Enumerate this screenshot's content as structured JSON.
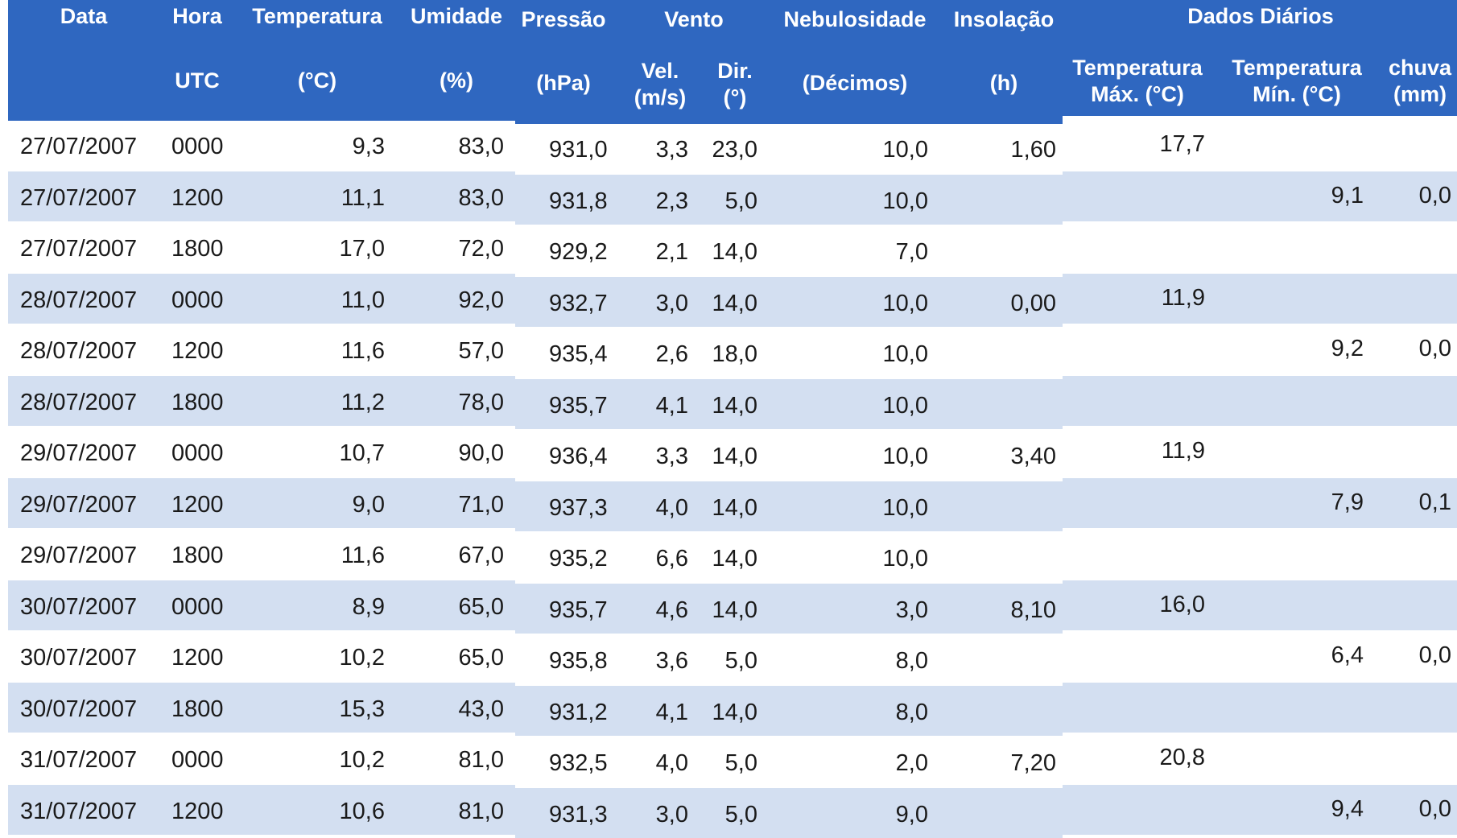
{
  "table": {
    "headers": {
      "data": "Data",
      "hora": "Hora",
      "hora_unit": "UTC",
      "temperatura": "Temperatura",
      "temperatura_unit": "(°C)",
      "umidade": "Umidade",
      "umidade_unit": "(%)",
      "pressao": "Pressão",
      "pressao_unit": "(hPa)",
      "vento": "Vento",
      "vento_vel_1": "Vel.",
      "vento_vel_2": "(m/s)",
      "vento_dir_1": "Dir.",
      "vento_dir_2": "(°)",
      "nebulosidade": "Nebulosidade",
      "nebulosidade_unit": "(Décimos)",
      "insolacao": "Insolação",
      "insolacao_unit": "(h)",
      "dados_diarios": "Dados Diários",
      "tmax_1": "Temperatura",
      "tmax_2": "Máx. (°C)",
      "tmin_1": "Temperatura",
      "tmin_2": "Mín. (°C)",
      "chuva_1": "chuva",
      "chuva_2": "(mm)"
    },
    "rows": [
      {
        "data": "27/07/2007",
        "hora": "0000",
        "temp": "9,3",
        "umid": "83,0",
        "pres": "931,0",
        "vel": "3,3",
        "dir": "23,0",
        "neb": "10,0",
        "ins": "1,60",
        "tmax": "17,7",
        "tmin": "",
        "chuva": ""
      },
      {
        "data": "27/07/2007",
        "hora": "1200",
        "temp": "11,1",
        "umid": "83,0",
        "pres": "931,8",
        "vel": "2,3",
        "dir": "5,0",
        "neb": "10,0",
        "ins": "",
        "tmax": "",
        "tmin": "9,1",
        "chuva": "0,0"
      },
      {
        "data": "27/07/2007",
        "hora": "1800",
        "temp": "17,0",
        "umid": "72,0",
        "pres": "929,2",
        "vel": "2,1",
        "dir": "14,0",
        "neb": "7,0",
        "ins": "",
        "tmax": "",
        "tmin": "",
        "chuva": ""
      },
      {
        "data": "28/07/2007",
        "hora": "0000",
        "temp": "11,0",
        "umid": "92,0",
        "pres": "932,7",
        "vel": "3,0",
        "dir": "14,0",
        "neb": "10,0",
        "ins": "0,00",
        "tmax": "11,9",
        "tmin": "",
        "chuva": ""
      },
      {
        "data": "28/07/2007",
        "hora": "1200",
        "temp": "11,6",
        "umid": "57,0",
        "pres": "935,4",
        "vel": "2,6",
        "dir": "18,0",
        "neb": "10,0",
        "ins": "",
        "tmax": "",
        "tmin": "9,2",
        "chuva": "0,0"
      },
      {
        "data": "28/07/2007",
        "hora": "1800",
        "temp": "11,2",
        "umid": "78,0",
        "pres": "935,7",
        "vel": "4,1",
        "dir": "14,0",
        "neb": "10,0",
        "ins": "",
        "tmax": "",
        "tmin": "",
        "chuva": ""
      },
      {
        "data": "29/07/2007",
        "hora": "0000",
        "temp": "10,7",
        "umid": "90,0",
        "pres": "936,4",
        "vel": "3,3",
        "dir": "14,0",
        "neb": "10,0",
        "ins": "3,40",
        "tmax": "11,9",
        "tmin": "",
        "chuva": ""
      },
      {
        "data": "29/07/2007",
        "hora": "1200",
        "temp": "9,0",
        "umid": "71,0",
        "pres": "937,3",
        "vel": "4,0",
        "dir": "14,0",
        "neb": "10,0",
        "ins": "",
        "tmax": "",
        "tmin": "7,9",
        "chuva": "0,1"
      },
      {
        "data": "29/07/2007",
        "hora": "1800",
        "temp": "11,6",
        "umid": "67,0",
        "pres": "935,2",
        "vel": "6,6",
        "dir": "14,0",
        "neb": "10,0",
        "ins": "",
        "tmax": "",
        "tmin": "",
        "chuva": ""
      },
      {
        "data": "30/07/2007",
        "hora": "0000",
        "temp": "8,9",
        "umid": "65,0",
        "pres": "935,7",
        "vel": "4,6",
        "dir": "14,0",
        "neb": "3,0",
        "ins": "8,10",
        "tmax": "16,0",
        "tmin": "",
        "chuva": ""
      },
      {
        "data": "30/07/2007",
        "hora": "1200",
        "temp": "10,2",
        "umid": "65,0",
        "pres": "935,8",
        "vel": "3,6",
        "dir": "5,0",
        "neb": "8,0",
        "ins": "",
        "tmax": "",
        "tmin": "6,4",
        "chuva": "0,0"
      },
      {
        "data": "30/07/2007",
        "hora": "1800",
        "temp": "15,3",
        "umid": "43,0",
        "pres": "931,2",
        "vel": "4,1",
        "dir": "14,0",
        "neb": "8,0",
        "ins": "",
        "tmax": "",
        "tmin": "",
        "chuva": ""
      },
      {
        "data": "31/07/2007",
        "hora": "0000",
        "temp": "10,2",
        "umid": "81,0",
        "pres": "932,5",
        "vel": "4,0",
        "dir": "5,0",
        "neb": "2,0",
        "ins": "7,20",
        "tmax": "20,8",
        "tmin": "",
        "chuva": ""
      },
      {
        "data": "31/07/2007",
        "hora": "1200",
        "temp": "10,6",
        "umid": "81,0",
        "pres": "931,3",
        "vel": "3,0",
        "dir": "5,0",
        "neb": "9,0",
        "ins": "",
        "tmax": "",
        "tmin": "9,4",
        "chuva": "0,0"
      }
    ]
  }
}
